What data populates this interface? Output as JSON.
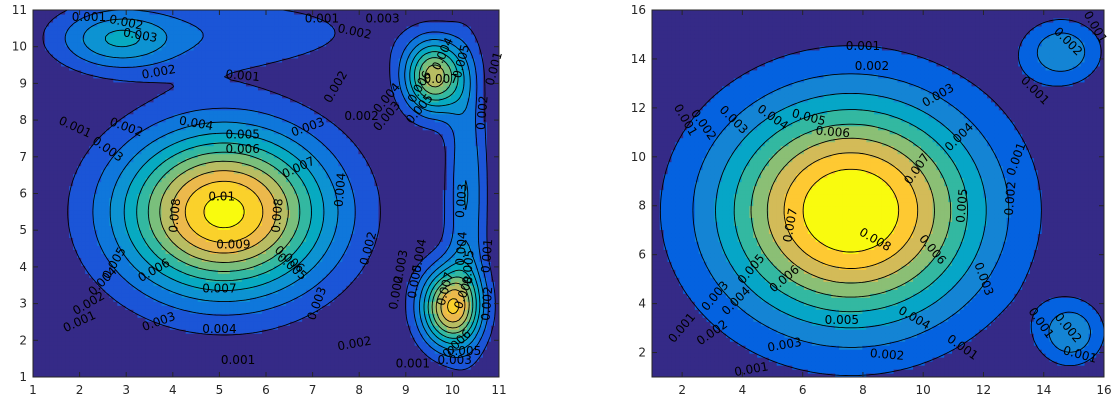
{
  "chart_data": [
    {
      "type": "contour",
      "colormap": "parula",
      "xlim": [
        1,
        11
      ],
      "ylim": [
        1,
        11
      ],
      "xticks": [
        1,
        2,
        3,
        4,
        5,
        6,
        7,
        8,
        9,
        10,
        11
      ],
      "yticks": [
        1,
        2,
        3,
        4,
        5,
        6,
        7,
        8,
        9,
        10,
        11
      ],
      "levels": [
        0.001,
        0.002,
        0.003,
        0.004,
        0.005,
        0.006,
        0.007,
        0.008,
        0.009,
        0.01
      ],
      "grid": false,
      "peaks": [
        {
          "x": 5.1,
          "y": 5.5,
          "value": 0.0102
        },
        {
          "x": 9.95,
          "y": 2.9,
          "value": 0.0085
        },
        {
          "x": 9.6,
          "y": 9.2,
          "value": 0.0075
        },
        {
          "x": 2.8,
          "y": 10.2,
          "value": 0.0034
        }
      ],
      "contour_labels": [
        {
          "text": "0.001",
          "x": 2.2,
          "y": 10.8,
          "angle": 0
        },
        {
          "text": "0.002",
          "x": 3.0,
          "y": 10.65,
          "angle": 12
        },
        {
          "text": "0.003",
          "x": 3.3,
          "y": 10.3,
          "angle": 10
        },
        {
          "text": "0.002",
          "x": 3.7,
          "y": 9.3,
          "angle": -10
        },
        {
          "text": "0.001",
          "x": 5.5,
          "y": 9.2,
          "angle": 5
        },
        {
          "text": "0.001",
          "x": 7.2,
          "y": 10.75,
          "angle": 0
        },
        {
          "text": "0.002",
          "x": 7.9,
          "y": 10.4,
          "angle": 12
        },
        {
          "text": "0.003",
          "x": 8.5,
          "y": 10.75,
          "angle": 0
        },
        {
          "text": "0.001",
          "x": 10.9,
          "y": 9.4,
          "angle": -75
        },
        {
          "text": "0.005",
          "x": 10.2,
          "y": 9.6,
          "angle": -75
        },
        {
          "text": "0.004",
          "x": 9.8,
          "y": 9.8,
          "angle": -65
        },
        {
          "text": "0.007",
          "x": 9.75,
          "y": 9.1,
          "angle": 0
        },
        {
          "text": "0.006",
          "x": 9.3,
          "y": 8.9,
          "angle": -60
        },
        {
          "text": "0.005",
          "x": 9.3,
          "y": 8.3,
          "angle": -50
        },
        {
          "text": "0.004",
          "x": 8.6,
          "y": 8.6,
          "angle": -50
        },
        {
          "text": "0.003",
          "x": 8.6,
          "y": 8.1,
          "angle": -50
        },
        {
          "text": "0.002",
          "x": 8.05,
          "y": 8.1,
          "angle": 0
        },
        {
          "text": "0.002",
          "x": 7.5,
          "y": 8.9,
          "angle": -60
        },
        {
          "text": "0.003",
          "x": 6.9,
          "y": 7.8,
          "angle": -20
        },
        {
          "text": "0.002",
          "x": 10.65,
          "y": 8.2,
          "angle": -85
        },
        {
          "text": "0.001",
          "x": 1.9,
          "y": 7.8,
          "angle": 25
        },
        {
          "text": "0.003",
          "x": 2.6,
          "y": 7.2,
          "angle": 35
        },
        {
          "text": "0.002",
          "x": 3.0,
          "y": 7.8,
          "angle": 20
        },
        {
          "text": "0.004",
          "x": 4.5,
          "y": 7.9,
          "angle": 10
        },
        {
          "text": "0.005",
          "x": 5.5,
          "y": 7.6,
          "angle": 0
        },
        {
          "text": "0.006",
          "x": 5.5,
          "y": 7.2,
          "angle": 0
        },
        {
          "text": "0.007",
          "x": 6.7,
          "y": 6.7,
          "angle": -25
        },
        {
          "text": "0.01",
          "x": 5.05,
          "y": 5.9,
          "angle": 0
        },
        {
          "text": "0.008",
          "x": 4.05,
          "y": 5.4,
          "angle": -85
        },
        {
          "text": "0.008",
          "x": 6.25,
          "y": 5.4,
          "angle": -85
        },
        {
          "text": "0.009",
          "x": 5.3,
          "y": 4.6,
          "angle": 0
        },
        {
          "text": "0.004",
          "x": 7.6,
          "y": 6.1,
          "angle": -85
        },
        {
          "text": "0.006",
          "x": 6.5,
          "y": 4.2,
          "angle": 40
        },
        {
          "text": "0.005",
          "x": 6.55,
          "y": 4.0,
          "angle": 40
        },
        {
          "text": "0.005",
          "x": 2.75,
          "y": 4.1,
          "angle": -60
        },
        {
          "text": "0.004",
          "x": 2.5,
          "y": 3.6,
          "angle": -45
        },
        {
          "text": "0.006",
          "x": 3.6,
          "y": 3.9,
          "angle": -30
        },
        {
          "text": "0.007",
          "x": 5.0,
          "y": 3.4,
          "angle": 0
        },
        {
          "text": "0.002",
          "x": 2.2,
          "y": 3.0,
          "angle": -30
        },
        {
          "text": "0.001",
          "x": 2.0,
          "y": 2.5,
          "angle": -25
        },
        {
          "text": "0.003",
          "x": 3.7,
          "y": 2.5,
          "angle": -20
        },
        {
          "text": "0.004",
          "x": 5.0,
          "y": 2.3,
          "angle": 0
        },
        {
          "text": "0.003",
          "x": 7.1,
          "y": 3.0,
          "angle": -70
        },
        {
          "text": "0.002",
          "x": 7.9,
          "y": 1.9,
          "angle": -10
        },
        {
          "text": "0.001",
          "x": 5.4,
          "y": 1.45,
          "angle": 0
        },
        {
          "text": "0.002",
          "x": 8.2,
          "y": 4.5,
          "angle": -75
        },
        {
          "text": "0.002",
          "x": 8.8,
          "y": 3.3,
          "angle": -80
        },
        {
          "text": "0.003",
          "x": 8.9,
          "y": 4.0,
          "angle": -80
        },
        {
          "text": "0.004",
          "x": 9.3,
          "y": 4.3,
          "angle": -80
        },
        {
          "text": "0.005",
          "x": 9.2,
          "y": 3.6,
          "angle": -80
        },
        {
          "text": "0.007",
          "x": 9.85,
          "y": 3.4,
          "angle": -75
        },
        {
          "text": "0.008",
          "x": 10.25,
          "y": 3.3,
          "angle": -70
        },
        {
          "text": "0.006",
          "x": 10.1,
          "y": 1.9,
          "angle": -45
        },
        {
          "text": "0.005",
          "x": 10.25,
          "y": 1.7,
          "angle": 0
        },
        {
          "text": "0.003",
          "x": 10.05,
          "y": 1.45,
          "angle": 0
        },
        {
          "text": "0.001",
          "x": 9.15,
          "y": 1.35,
          "angle": 0
        },
        {
          "text": "0.003",
          "x": 10.2,
          "y": 5.8,
          "angle": -85
        },
        {
          "text": "0.004",
          "x": 10.2,
          "y": 4.5,
          "angle": -85
        },
        {
          "text": "0.005",
          "x": 10.35,
          "y": 4.0,
          "angle": -85
        },
        {
          "text": "0.001",
          "x": 10.75,
          "y": 4.3,
          "angle": -85
        },
        {
          "text": "0.002",
          "x": 10.75,
          "y": 3.0,
          "angle": -85
        }
      ]
    },
    {
      "type": "contour",
      "colormap": "parula",
      "xlim": [
        1,
        16
      ],
      "ylim": [
        1,
        16
      ],
      "xticks": [
        2,
        4,
        6,
        8,
        10,
        12,
        14,
        16
      ],
      "yticks": [
        2,
        4,
        6,
        8,
        10,
        12,
        14,
        16
      ],
      "levels": [
        0.001,
        0.002,
        0.003,
        0.004,
        0.005,
        0.006,
        0.007,
        0.008
      ],
      "grid": false,
      "peaks": [
        {
          "x": 7.6,
          "y": 7.8,
          "value": 0.0088
        },
        {
          "x": 14.6,
          "y": 14.3,
          "value": 0.0025
        },
        {
          "x": 14.9,
          "y": 2.8,
          "value": 0.0025
        }
      ],
      "contour_labels": [
        {
          "text": "0.001",
          "x": 15.7,
          "y": 15.3,
          "angle": 60
        },
        {
          "text": "0.002",
          "x": 14.8,
          "y": 14.7,
          "angle": 45
        },
        {
          "text": "0.001",
          "x": 13.7,
          "y": 12.7,
          "angle": 45
        },
        {
          "text": "0.001",
          "x": 8.0,
          "y": 14.5,
          "angle": 0
        },
        {
          "text": "0.002",
          "x": 8.3,
          "y": 13.7,
          "angle": 0
        },
        {
          "text": "0.003",
          "x": 10.5,
          "y": 12.5,
          "angle": -30
        },
        {
          "text": "0.004",
          "x": 11.2,
          "y": 10.8,
          "angle": -45
        },
        {
          "text": "0.005",
          "x": 6.2,
          "y": 11.6,
          "angle": 15
        },
        {
          "text": "0.006",
          "x": 7.0,
          "y": 11.0,
          "angle": 5
        },
        {
          "text": "0.004",
          "x": 5.0,
          "y": 11.6,
          "angle": 35
        },
        {
          "text": "0.003",
          "x": 3.7,
          "y": 11.5,
          "angle": 45
        },
        {
          "text": "0.002",
          "x": 2.7,
          "y": 11.3,
          "angle": 55
        },
        {
          "text": "0.001",
          "x": 2.1,
          "y": 11.5,
          "angle": 60
        },
        {
          "text": "0.001",
          "x": 13.1,
          "y": 9.9,
          "angle": -70
        },
        {
          "text": "0.002",
          "x": 12.9,
          "y": 8.3,
          "angle": -85
        },
        {
          "text": "0.005",
          "x": 11.3,
          "y": 8.0,
          "angle": -85
        },
        {
          "text": "0.007",
          "x": 9.8,
          "y": 9.5,
          "angle": -55
        },
        {
          "text": "0.007",
          "x": 5.6,
          "y": 7.2,
          "angle": -80
        },
        {
          "text": "0.008",
          "x": 8.4,
          "y": 6.6,
          "angle": 30
        },
        {
          "text": "0.006",
          "x": 10.3,
          "y": 6.2,
          "angle": 50
        },
        {
          "text": "0.005",
          "x": 4.3,
          "y": 5.4,
          "angle": -50
        },
        {
          "text": "0.006",
          "x": 5.4,
          "y": 5.0,
          "angle": -40
        },
        {
          "text": "0.003",
          "x": 3.1,
          "y": 4.3,
          "angle": -50
        },
        {
          "text": "0.004",
          "x": 3.8,
          "y": 4.1,
          "angle": -45
        },
        {
          "text": "0.002",
          "x": 3.0,
          "y": 2.8,
          "angle": -35
        },
        {
          "text": "0.001",
          "x": 2.0,
          "y": 3.0,
          "angle": -50
        },
        {
          "text": "0.005",
          "x": 7.3,
          "y": 3.3,
          "angle": 0
        },
        {
          "text": "0.004",
          "x": 9.7,
          "y": 3.4,
          "angle": 30
        },
        {
          "text": "0.003",
          "x": 12.0,
          "y": 5.0,
          "angle": 70
        },
        {
          "text": "0.003",
          "x": 5.4,
          "y": 2.3,
          "angle": -10
        },
        {
          "text": "0.002",
          "x": 8.8,
          "y": 1.9,
          "angle": 5
        },
        {
          "text": "0.001",
          "x": 11.3,
          "y": 2.2,
          "angle": 35
        },
        {
          "text": "0.001",
          "x": 4.3,
          "y": 1.3,
          "angle": -10
        },
        {
          "text": "0.001",
          "x": 13.9,
          "y": 3.2,
          "angle": 55
        },
        {
          "text": "0.002",
          "x": 14.8,
          "y": 3.0,
          "angle": 50
        },
        {
          "text": "0.001",
          "x": 15.2,
          "y": 1.9,
          "angle": 15
        }
      ]
    }
  ]
}
